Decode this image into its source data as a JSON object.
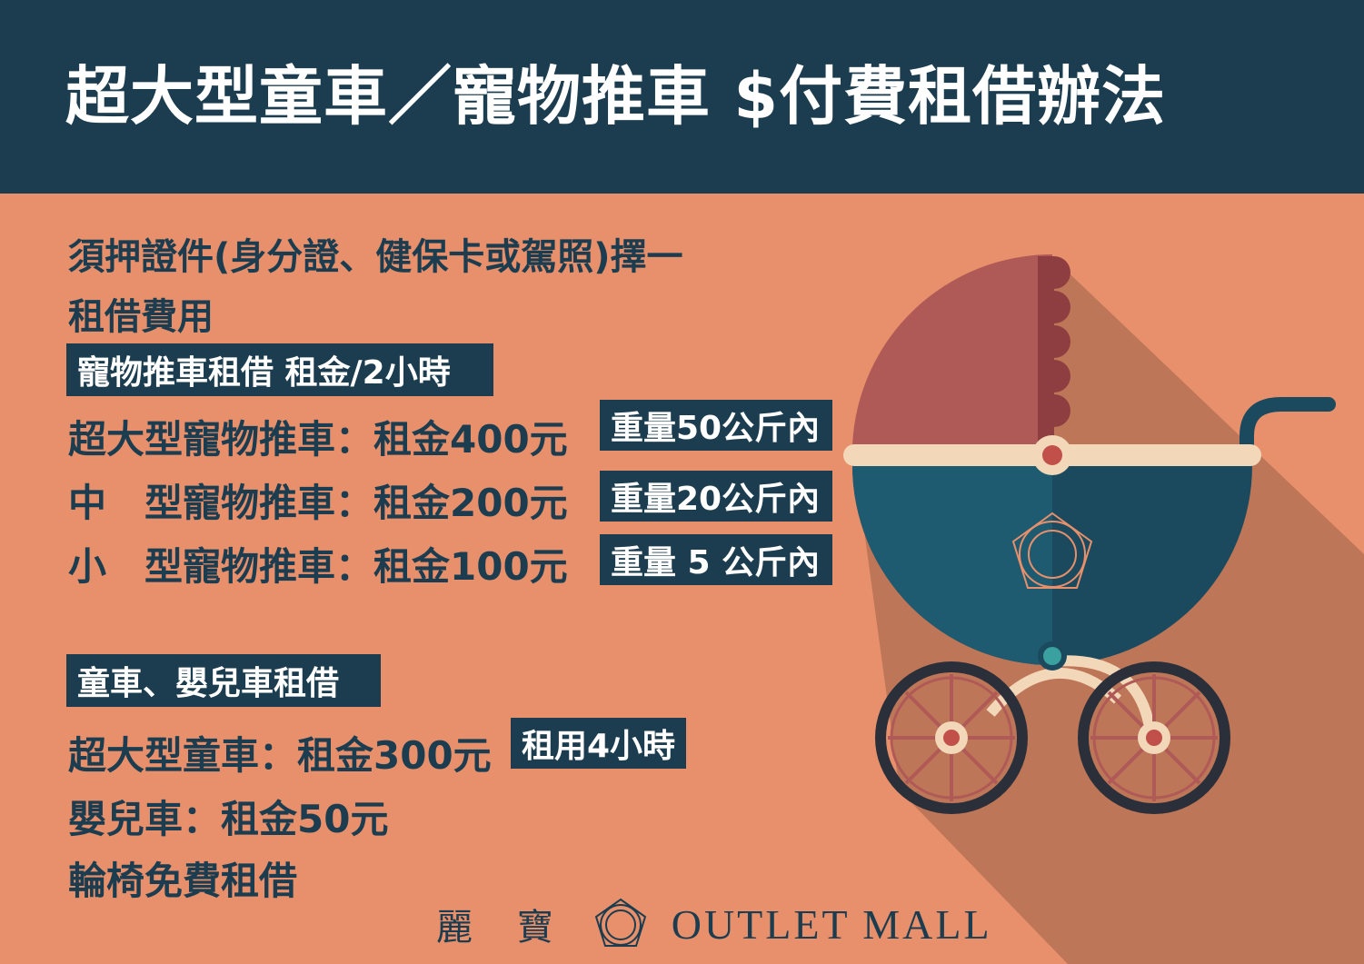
{
  "header": {
    "title": "超大型童車／寵物推車 $付費租借辦法"
  },
  "requirement": "須押證件(身分證、健保卡或駕照)擇一",
  "fees_heading": "租借費用",
  "pet": {
    "section_label": "寵物推車租借 租金/2小時",
    "items": [
      {
        "label": "超大型寵物推車：租金400元",
        "limit": "重量50公斤內"
      },
      {
        "label": "中　型寵物推車：租金200元",
        "limit": "重量20公斤內"
      },
      {
        "label": "小　型寵物推車：租金100元",
        "limit": "重量 5 公斤內"
      }
    ]
  },
  "kids": {
    "section_label": "童車、嬰兒車租借",
    "items": [
      {
        "label": "超大型童車：租金300元",
        "note": "租用4小時"
      },
      {
        "label": "嬰兒車：租金50元"
      },
      {
        "label": "輪椅免費租借"
      }
    ]
  },
  "footer": {
    "brand_cn": "麗 寶",
    "brand_en": "OUTLET MALL"
  },
  "colors": {
    "navy": "#1c3d4f",
    "background": "#e7906b",
    "shadow": "#bd7657",
    "hood": "#b05a57",
    "body": "#1e5a70"
  }
}
